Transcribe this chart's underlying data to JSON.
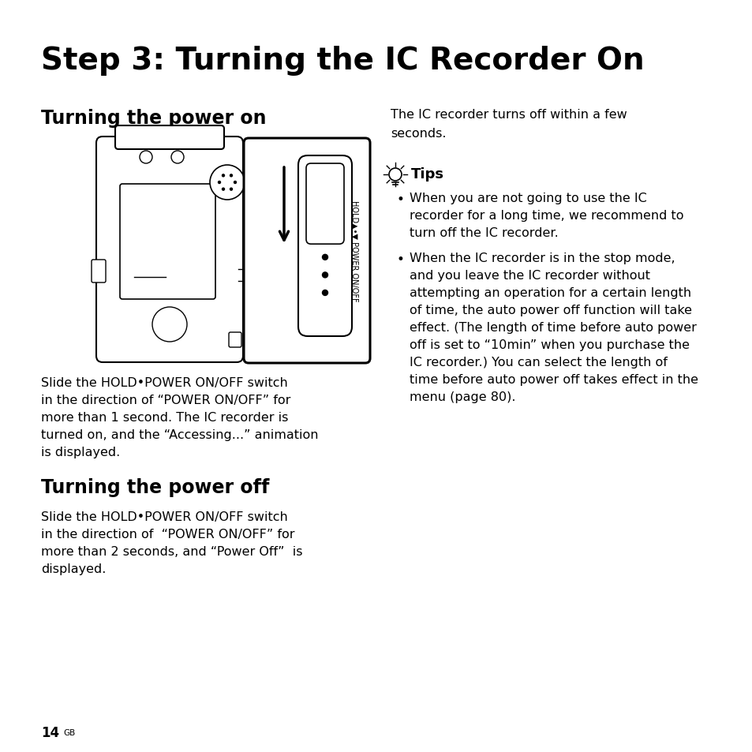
{
  "title": "Step 3: Turning the IC Recorder On",
  "section1_heading": "Turning the power on",
  "section2_heading": "Turning the power off",
  "right_col_intro_line1": "The IC recorder turns off within a few",
  "right_col_intro_line2": "seconds.",
  "tips_heading": "Tips",
  "tip1_lines": [
    "When you are not going to use the IC",
    "recorder for a long time, we recommend to",
    "turn off the IC recorder."
  ],
  "tip2_lines": [
    "When the IC recorder is in the stop mode,",
    "and you leave the IC recorder without",
    "attempting an operation for a certain length",
    "of time, the auto power off function will take",
    "effect. (The length of time before auto power",
    "off is set to “10min” when you purchase the",
    "IC recorder.) You can select the length of",
    "time before auto power off takes effect in the",
    "menu (page 80)."
  ],
  "power_on_lines": [
    "Slide the HOLD•POWER ON/OFF switch",
    "in the direction of “POWER ON/OFF” for",
    "more than 1 second. The IC recorder is",
    "turned on, and the “Accessing...” animation",
    "is displayed."
  ],
  "power_off_lines": [
    "Slide the HOLD•POWER ON/OFF switch",
    "in the direction of  “POWER ON/OFF” for",
    "more than 2 seconds, and “Power Off”  is",
    "displayed."
  ],
  "page_number": "14",
  "bg_color": "#ffffff",
  "text_color": "#000000"
}
